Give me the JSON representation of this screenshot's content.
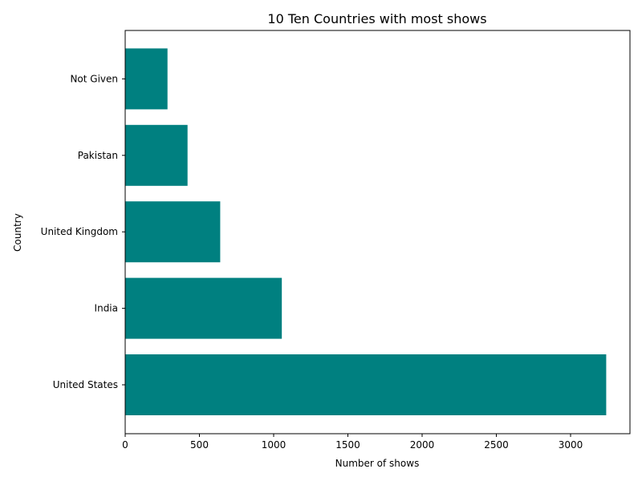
{
  "chart_data": {
    "type": "bar",
    "orientation": "horizontal",
    "title": "10 Ten Countries with most shows",
    "xlabel": "Number of shows",
    "ylabel": "Country",
    "categories": [
      "United States",
      "India",
      "United Kingdom",
      "Pakistan",
      "Not Given"
    ],
    "values": [
      3240,
      1055,
      640,
      420,
      285
    ],
    "xlim": [
      0,
      3400
    ],
    "xticks": [
      0,
      500,
      1000,
      1500,
      2000,
      2500,
      3000
    ],
    "bar_color": "#008080",
    "grid": false
  }
}
